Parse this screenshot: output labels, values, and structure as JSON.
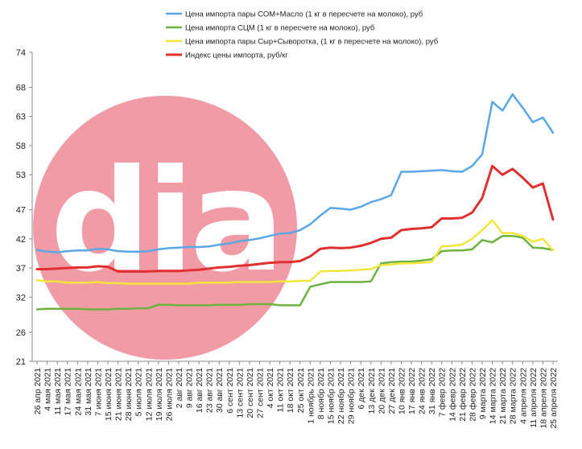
{
  "chart_data": {
    "type": "line",
    "ylim": [
      21,
      74
    ],
    "yticks": [
      21,
      26,
      32,
      37,
      42,
      47,
      53,
      58,
      63,
      68,
      74
    ],
    "grid": false,
    "legend_position": "top-center",
    "watermark": "dia",
    "x": [
      "26 апр 2021",
      "4 мая 2021",
      "11 мая 2021",
      "17 мая 2021",
      "24 мая 2021",
      "31 мая 2021",
      "7 июня 2021",
      "15 июня 2021",
      "21 июня 2021",
      "28 июня 2021",
      "5 июля 2021",
      "12 июля 2021",
      "19 июля 2021",
      "26 июля 2021",
      "2 авг 2021",
      "9 авг 2021",
      "16 авг 2021",
      "23 авг 2021",
      "30 авг 2021",
      "6 сент 2021",
      "13 сент 2021",
      "20 сент 2021",
      "27 сент 2021",
      "4 окт 2021",
      "11 окт 2021",
      "18 окт 2021",
      "25 окт 2021",
      "1 ноябрь 2021",
      "8 ноябр 2021",
      "15 ноябр 2021",
      "22 ноябр 2021",
      "29 ноябр 2021",
      "6 дек 2021",
      "13 дек 2021",
      "20 дек 2021",
      "27 дек 2021",
      "10 янв 2022",
      "17 янв 2022",
      "24 янв 2022",
      "31 янв 2022",
      "7 февр 2022",
      "14 февр 2022",
      "21 февр 2022",
      "28 февр 2022",
      "9 марта 2022",
      "14 марта 2022",
      "21 марта 2022",
      "28 марта 2022",
      "4 апреля 2022",
      "11 апреля 2022",
      "18 апреля 2022",
      "25 апреля 2022"
    ],
    "series": [
      {
        "name": "Цена импорта пары СОМ+Масло (1 кг в пересчете на молоко), руб",
        "color": "#5aa7e6",
        "values": [
          40.1,
          39.8,
          39.7,
          39.9,
          40.0,
          40.0,
          40.3,
          40.2,
          39.9,
          39.8,
          39.8,
          39.9,
          40.2,
          40.4,
          40.5,
          40.6,
          40.6,
          40.7,
          41.0,
          41.2,
          41.6,
          41.8,
          42.1,
          42.5,
          42.9,
          43.0,
          43.5,
          44.5,
          46.0,
          47.3,
          47.2,
          47.0,
          47.5,
          48.3,
          48.8,
          49.5,
          53.5,
          53.5,
          53.6,
          53.7,
          53.8,
          53.6,
          53.5,
          54.5,
          56.5,
          65.5,
          64.0,
          66.8,
          64.5,
          62.0,
          62.8,
          60.2
        ]
      },
      {
        "name": "Цена импорта СЦМ (1 кг в пересчете на молоко), руб",
        "color": "#6db33f",
        "values": [
          29.9,
          30.0,
          30.0,
          30.0,
          30.0,
          29.9,
          29.9,
          29.9,
          30.0,
          30.0,
          30.1,
          30.1,
          30.7,
          30.7,
          30.6,
          30.6,
          30.6,
          30.6,
          30.7,
          30.7,
          30.7,
          30.8,
          30.8,
          30.8,
          30.6,
          30.6,
          30.6,
          33.8,
          34.2,
          34.6,
          34.6,
          34.6,
          34.6,
          34.7,
          37.8,
          38.0,
          38.1,
          38.1,
          38.3,
          38.5,
          39.9,
          40.0,
          40.0,
          40.2,
          41.8,
          41.4,
          42.5,
          42.5,
          42.2,
          40.5,
          40.4,
          40.1
        ]
      },
      {
        "name": "Цена импорта пары Сыр+Сыворотка, (1 кг в пересчете на молоко), руб",
        "color": "#f2e63a",
        "values": [
          34.9,
          34.7,
          34.7,
          34.5,
          34.5,
          34.5,
          34.6,
          34.4,
          34.4,
          34.3,
          34.3,
          34.3,
          34.3,
          34.3,
          34.3,
          34.3,
          34.5,
          34.5,
          34.5,
          34.5,
          34.6,
          34.6,
          34.6,
          34.6,
          34.7,
          34.7,
          34.8,
          34.8,
          36.4,
          36.5,
          36.5,
          36.6,
          36.7,
          36.8,
          37.5,
          37.6,
          37.8,
          37.8,
          37.9,
          38.0,
          40.7,
          40.8,
          41.0,
          42.0,
          43.5,
          45.2,
          43.0,
          43.0,
          42.5,
          41.5,
          42.0,
          40.0
        ]
      },
      {
        "name": "Индекс цены импорта, руб/кг",
        "color": "#e03030",
        "values": [
          36.8,
          36.8,
          36.9,
          37.0,
          37.1,
          37.1,
          37.3,
          37.2,
          36.4,
          36.4,
          36.4,
          36.4,
          36.5,
          36.5,
          36.5,
          36.6,
          36.7,
          36.9,
          37.1,
          37.2,
          37.4,
          37.5,
          37.7,
          37.9,
          38.0,
          38.0,
          38.2,
          39.0,
          40.3,
          40.5,
          40.4,
          40.5,
          40.8,
          41.3,
          42.0,
          42.2,
          43.5,
          43.7,
          43.8,
          44.0,
          45.5,
          45.5,
          45.6,
          46.5,
          49.0,
          54.5,
          53.0,
          54.0,
          52.5,
          50.8,
          51.5,
          45.3
        ]
      }
    ]
  }
}
